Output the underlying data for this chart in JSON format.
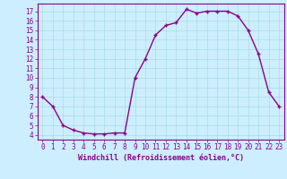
{
  "x": [
    0,
    1,
    2,
    3,
    4,
    5,
    6,
    7,
    8,
    9,
    10,
    11,
    12,
    13,
    14,
    15,
    16,
    17,
    18,
    19,
    20,
    21,
    22,
    23
  ],
  "y": [
    8.0,
    7.0,
    5.0,
    4.5,
    4.2,
    4.1,
    4.1,
    4.2,
    4.2,
    10.0,
    12.0,
    14.5,
    15.5,
    15.8,
    17.2,
    16.8,
    17.0,
    17.0,
    17.0,
    16.5,
    15.0,
    12.5,
    8.5,
    7.0
  ],
  "line_color": "#8B008B",
  "marker": "+",
  "marker_size": 3,
  "marker_color": "#8B008B",
  "bg_color": "#cceeff",
  "grid_color": "#aadddd",
  "tick_color": "#8B008B",
  "xlabel": "Windchill (Refroidissement éolien,°C)",
  "xlabel_fontsize": 6,
  "ylabel_ticks": [
    4,
    5,
    6,
    7,
    8,
    9,
    10,
    11,
    12,
    13,
    14,
    15,
    16,
    17
  ],
  "xlim": [
    -0.5,
    23.5
  ],
  "ylim": [
    3.5,
    17.8
  ],
  "xticks": [
    0,
    1,
    2,
    3,
    4,
    5,
    6,
    7,
    8,
    9,
    10,
    11,
    12,
    13,
    14,
    15,
    16,
    17,
    18,
    19,
    20,
    21,
    22,
    23
  ],
  "line_width": 1.0,
  "font_family": "monospace",
  "tick_fontsize": 5.5
}
